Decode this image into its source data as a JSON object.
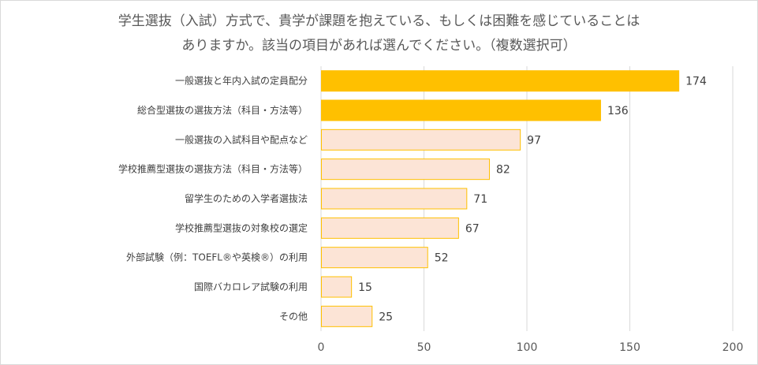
{
  "chart_data": {
    "type": "bar",
    "orientation": "horizontal",
    "title_lines": [
      "学生選抜（入試）方式で、貴学が課題を抱えている、もしくは困難を感じていることは",
      "ありますか。該当の項目があれば選んでください。（複数選択可）"
    ],
    "categories": [
      "一般選抜と年内入試の定員配分",
      "総合型選抜の選抜方法（科目・方法等）",
      "一般選抜の入試科目や配点など",
      "学校推薦型選抜の選抜方法（科目・方法等）",
      "留学生のための入学者選抜法",
      "学校推薦型選抜の対象校の選定",
      "外部試験（例：TOEFL®や英検®）の利用",
      "国際バカロレア試験の利用",
      "その他"
    ],
    "values": [
      174,
      136,
      97,
      82,
      71,
      67,
      52,
      15,
      25
    ],
    "highlighted": [
      true,
      true,
      false,
      false,
      false,
      false,
      false,
      false,
      false
    ],
    "xlim": [
      0,
      200
    ],
    "xticks": [
      0,
      50,
      100,
      150,
      200
    ],
    "grid": true,
    "colors": {
      "highlight_fill": "#FFC000",
      "normal_fill": "#FCE4D6",
      "normal_stroke": "#FFC000",
      "grid": "#d9d9d9"
    }
  }
}
